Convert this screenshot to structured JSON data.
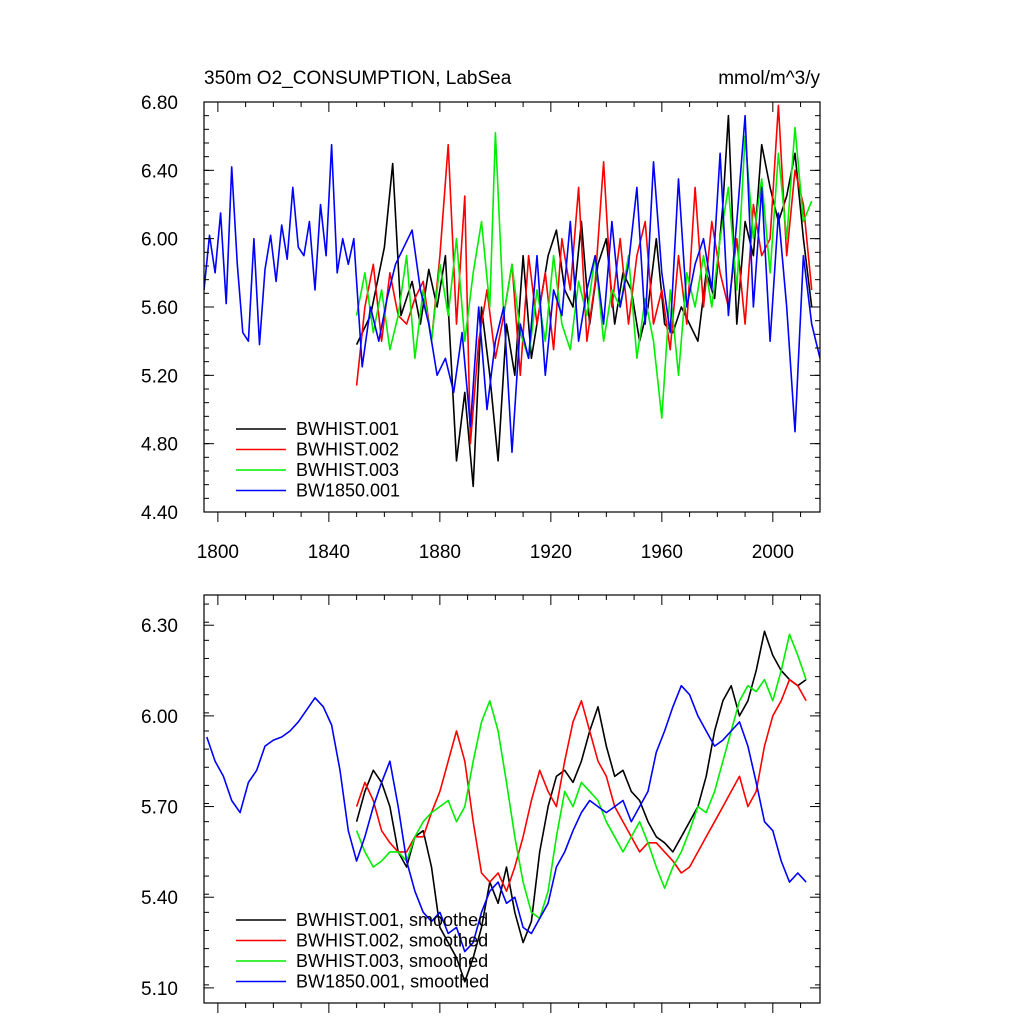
{
  "figure": {
    "title_left": "350m O2_CONSUMPTION, LabSea",
    "title_right": "mmol/m^3/y"
  },
  "chart_data": [
    {
      "type": "line",
      "xlim": [
        1795,
        2017
      ],
      "ylim": [
        4.4,
        6.8
      ],
      "xticks": [
        1800,
        1840,
        1880,
        1920,
        1960,
        2000
      ],
      "yticks": [
        4.4,
        4.8,
        5.2,
        5.6,
        6.0,
        6.4,
        6.8
      ],
      "ytick_labels": [
        "4.40",
        "4.80",
        "5.20",
        "5.60",
        "6.00",
        "6.40",
        "6.80"
      ],
      "xtick_labels": [
        "1800",
        "1840",
        "1880",
        "1920",
        "1960",
        "2000"
      ],
      "legend_position": "bottom-left",
      "series": [
        {
          "name": "BWHIST.001",
          "color": "#000000",
          "x": [
            1850,
            1855,
            1860,
            1863,
            1866,
            1870,
            1873,
            1876,
            1879,
            1882,
            1884,
            1886,
            1889,
            1892,
            1895,
            1898,
            1901,
            1904,
            1907,
            1910,
            1913,
            1916,
            1919,
            1922,
            1925,
            1928,
            1931,
            1934,
            1937,
            1940,
            1943,
            1946,
            1949,
            1952,
            1955,
            1958,
            1961,
            1964,
            1967,
            1970,
            1973,
            1976,
            1979,
            1982,
            1984,
            1987,
            1990,
            1993,
            1996,
            1999,
            2002,
            2005,
            2008,
            2011,
            2014
          ],
          "y": [
            5.38,
            5.55,
            5.95,
            6.44,
            5.55,
            5.75,
            5.5,
            5.82,
            5.6,
            5.9,
            5.3,
            4.7,
            5.1,
            4.55,
            5.6,
            5.2,
            4.7,
            5.5,
            5.2,
            5.9,
            5.3,
            5.6,
            5.9,
            6.05,
            5.7,
            5.6,
            6.1,
            5.5,
            5.85,
            6.0,
            5.5,
            5.8,
            5.7,
            5.4,
            5.6,
            6.0,
            5.5,
            5.45,
            5.6,
            5.5,
            5.4,
            5.8,
            5.65,
            6.2,
            6.72,
            5.5,
            6.1,
            5.9,
            6.55,
            6.3,
            6.1,
            6.25,
            6.5,
            6.0,
            5.6
          ]
        },
        {
          "name": "BWHIST.002",
          "color": "#ff0000",
          "x": [
            1850,
            1853,
            1856,
            1859,
            1862,
            1865,
            1868,
            1871,
            1874,
            1877,
            1880,
            1883,
            1886,
            1889,
            1891,
            1894,
            1897,
            1900,
            1903,
            1906,
            1909,
            1912,
            1915,
            1918,
            1921,
            1924,
            1927,
            1930,
            1933,
            1936,
            1939,
            1942,
            1945,
            1948,
            1951,
            1954,
            1957,
            1960,
            1963,
            1966,
            1969,
            1972,
            1975,
            1978,
            1981,
            1984,
            1987,
            1990,
            1993,
            1996,
            1999,
            2002,
            2005,
            2008,
            2011,
            2014
          ],
          "y": [
            5.14,
            5.6,
            5.85,
            5.4,
            5.8,
            5.55,
            5.5,
            5.65,
            5.75,
            5.4,
            5.9,
            6.55,
            5.5,
            6.25,
            4.8,
            5.4,
            5.7,
            5.3,
            5.55,
            5.85,
            5.2,
            5.9,
            5.5,
            5.8,
            5.35,
            6.0,
            5.7,
            6.3,
            5.4,
            5.75,
            6.45,
            5.6,
            6.0,
            5.5,
            5.9,
            6.1,
            5.5,
            5.7,
            5.35,
            5.9,
            5.5,
            6.3,
            5.6,
            6.1,
            5.8,
            5.6,
            6.0,
            5.5,
            6.2,
            5.9,
            6.0,
            6.78,
            5.9,
            6.4,
            6.2,
            5.7
          ]
        },
        {
          "name": "BWHIST.003",
          "color": "#00ee00",
          "x": [
            1850,
            1853,
            1856,
            1859,
            1862,
            1865,
            1868,
            1871,
            1874,
            1877,
            1880,
            1883,
            1886,
            1889,
            1892,
            1895,
            1898,
            1900,
            1903,
            1906,
            1909,
            1912,
            1915,
            1918,
            1921,
            1924,
            1927,
            1930,
            1933,
            1936,
            1939,
            1942,
            1945,
            1948,
            1951,
            1954,
            1957,
            1960,
            1963,
            1966,
            1969,
            1972,
            1975,
            1978,
            1981,
            1984,
            1987,
            1990,
            1993,
            1996,
            1999,
            2002,
            2005,
            2008,
            2011,
            2014
          ],
          "y": [
            5.55,
            5.8,
            5.45,
            5.7,
            5.35,
            5.55,
            5.9,
            5.3,
            5.7,
            5.4,
            5.85,
            5.55,
            6.0,
            5.4,
            5.8,
            6.1,
            5.6,
            6.62,
            5.55,
            5.85,
            5.45,
            5.3,
            5.7,
            5.4,
            5.9,
            5.5,
            5.35,
            5.75,
            5.55,
            5.9,
            5.4,
            5.7,
            5.6,
            5.9,
            5.3,
            5.65,
            5.4,
            4.95,
            5.7,
            5.2,
            5.8,
            5.6,
            5.9,
            5.6,
            6.0,
            6.3,
            5.7,
            6.6,
            6.0,
            6.35,
            5.8,
            6.5,
            6.0,
            6.65,
            6.1,
            6.22
          ]
        },
        {
          "name": "BW1850.001",
          "color": "#0000ff",
          "x": [
            1795,
            1797,
            1799,
            1801,
            1803,
            1805,
            1807,
            1809,
            1811,
            1813,
            1815,
            1817,
            1819,
            1821,
            1823,
            1825,
            1827,
            1829,
            1831,
            1833,
            1835,
            1837,
            1839,
            1841,
            1843,
            1845,
            1847,
            1849,
            1852,
            1855,
            1858,
            1861,
            1864,
            1867,
            1870,
            1873,
            1876,
            1879,
            1882,
            1885,
            1888,
            1891,
            1894,
            1897,
            1900,
            1903,
            1906,
            1909,
            1912,
            1915,
            1918,
            1921,
            1924,
            1927,
            1930,
            1933,
            1936,
            1939,
            1942,
            1945,
            1948,
            1951,
            1954,
            1957,
            1960,
            1963,
            1966,
            1969,
            1972,
            1975,
            1978,
            1981,
            1984,
            1987,
            1990,
            1993,
            1996,
            1999,
            2002,
            2005,
            2008,
            2011,
            2014,
            2017
          ],
          "y": [
            5.7,
            6.02,
            5.8,
            6.15,
            5.62,
            6.42,
            5.85,
            5.45,
            5.4,
            6.0,
            5.38,
            5.82,
            6.02,
            5.75,
            6.08,
            5.88,
            6.3,
            5.95,
            5.9,
            6.1,
            5.7,
            6.2,
            5.9,
            6.55,
            5.8,
            6.0,
            5.85,
            6.0,
            5.25,
            5.6,
            5.4,
            5.65,
            5.85,
            5.95,
            6.05,
            5.7,
            5.5,
            5.2,
            5.3,
            5.1,
            5.45,
            4.9,
            5.6,
            5.0,
            5.4,
            5.6,
            4.75,
            5.5,
            5.3,
            5.9,
            5.2,
            5.7,
            5.55,
            6.1,
            5.4,
            5.7,
            5.9,
            5.5,
            6.1,
            5.6,
            5.85,
            6.3,
            5.5,
            6.45,
            5.8,
            5.45,
            6.35,
            5.6,
            5.85,
            6.0,
            5.7,
            6.5,
            5.55,
            6.1,
            6.72,
            5.6,
            6.3,
            5.4,
            6.15,
            5.6,
            4.87,
            5.9,
            5.5,
            5.3
          ]
        }
      ]
    },
    {
      "type": "line",
      "xlim": [
        1795,
        2017
      ],
      "ylim": [
        5.05,
        6.4
      ],
      "xticks": [
        1800,
        1840,
        1880,
        1920,
        1960,
        2000
      ],
      "yticks": [
        5.1,
        5.4,
        5.7,
        6.0,
        6.3
      ],
      "ytick_labels": [
        "5.10",
        "5.40",
        "5.70",
        "6.00",
        "6.30"
      ],
      "legend_position": "bottom-left",
      "series": [
        {
          "name": "BWHIST.001, smoothed",
          "color": "#000000",
          "x": [
            1850,
            1853,
            1856,
            1859,
            1862,
            1865,
            1868,
            1871,
            1874,
            1877,
            1880,
            1883,
            1886,
            1889,
            1892,
            1895,
            1898,
            1901,
            1904,
            1907,
            1910,
            1913,
            1916,
            1919,
            1922,
            1925,
            1928,
            1931,
            1934,
            1937,
            1940,
            1943,
            1946,
            1949,
            1952,
            1955,
            1958,
            1961,
            1964,
            1967,
            1970,
            1973,
            1976,
            1979,
            1982,
            1985,
            1988,
            1991,
            1994,
            1997,
            2000,
            2003,
            2006,
            2009,
            2012
          ],
          "y": [
            5.65,
            5.75,
            5.82,
            5.78,
            5.7,
            5.55,
            5.5,
            5.6,
            5.62,
            5.5,
            5.3,
            5.25,
            5.2,
            5.12,
            5.2,
            5.3,
            5.45,
            5.38,
            5.5,
            5.35,
            5.25,
            5.32,
            5.55,
            5.7,
            5.8,
            5.82,
            5.78,
            5.85,
            5.95,
            6.03,
            5.9,
            5.8,
            5.82,
            5.75,
            5.72,
            5.65,
            5.6,
            5.58,
            5.55,
            5.6,
            5.65,
            5.7,
            5.8,
            5.95,
            6.05,
            6.1,
            6.0,
            6.05,
            6.15,
            6.28,
            6.2,
            6.15,
            6.12,
            6.1,
            6.12
          ]
        },
        {
          "name": "BWHIST.002, smoothed",
          "color": "#ff0000",
          "x": [
            1850,
            1853,
            1856,
            1859,
            1862,
            1865,
            1868,
            1871,
            1874,
            1877,
            1880,
            1883,
            1886,
            1889,
            1892,
            1895,
            1898,
            1901,
            1904,
            1907,
            1910,
            1913,
            1916,
            1919,
            1922,
            1925,
            1928,
            1931,
            1934,
            1937,
            1940,
            1943,
            1946,
            1949,
            1952,
            1955,
            1958,
            1961,
            1964,
            1967,
            1970,
            1973,
            1976,
            1979,
            1982,
            1985,
            1988,
            1991,
            1994,
            1997,
            2000,
            2003,
            2006,
            2009,
            2012
          ],
          "y": [
            5.7,
            5.78,
            5.72,
            5.62,
            5.58,
            5.55,
            5.55,
            5.6,
            5.6,
            5.68,
            5.75,
            5.85,
            5.95,
            5.85,
            5.65,
            5.48,
            5.45,
            5.48,
            5.42,
            5.5,
            5.6,
            5.72,
            5.82,
            5.75,
            5.7,
            5.85,
            5.98,
            6.05,
            5.95,
            5.85,
            5.8,
            5.7,
            5.65,
            5.6,
            5.55,
            5.58,
            5.58,
            5.55,
            5.52,
            5.48,
            5.5,
            5.55,
            5.6,
            5.65,
            5.7,
            5.75,
            5.8,
            5.7,
            5.75,
            5.9,
            6.0,
            6.05,
            6.12,
            6.1,
            6.05
          ]
        },
        {
          "name": "BWHIST.003, smoothed",
          "color": "#00ee00",
          "x": [
            1850,
            1853,
            1856,
            1859,
            1862,
            1865,
            1868,
            1871,
            1874,
            1877,
            1880,
            1883,
            1886,
            1889,
            1892,
            1895,
            1898,
            1901,
            1904,
            1907,
            1910,
            1913,
            1916,
            1919,
            1922,
            1925,
            1928,
            1931,
            1934,
            1937,
            1940,
            1943,
            1946,
            1949,
            1952,
            1955,
            1958,
            1961,
            1964,
            1967,
            1970,
            1973,
            1976,
            1979,
            1982,
            1985,
            1988,
            1991,
            1994,
            1997,
            2000,
            2003,
            2006,
            2009,
            2012
          ],
          "y": [
            5.62,
            5.55,
            5.5,
            5.52,
            5.55,
            5.55,
            5.52,
            5.6,
            5.65,
            5.68,
            5.7,
            5.72,
            5.65,
            5.7,
            5.85,
            5.98,
            6.05,
            5.95,
            5.78,
            5.6,
            5.45,
            5.35,
            5.33,
            5.42,
            5.6,
            5.75,
            5.7,
            5.78,
            5.75,
            5.72,
            5.65,
            5.6,
            5.55,
            5.6,
            5.65,
            5.58,
            5.5,
            5.43,
            5.5,
            5.55,
            5.62,
            5.7,
            5.68,
            5.75,
            5.85,
            5.95,
            6.05,
            6.1,
            6.08,
            6.12,
            6.05,
            6.15,
            6.27,
            6.2,
            6.12
          ]
        },
        {
          "name": "BW1850.001, smoothed",
          "color": "#0000ff",
          "x": [
            1796,
            1799,
            1802,
            1805,
            1808,
            1811,
            1814,
            1817,
            1820,
            1823,
            1826,
            1829,
            1832,
            1835,
            1838,
            1841,
            1844,
            1847,
            1850,
            1853,
            1856,
            1859,
            1862,
            1865,
            1868,
            1871,
            1874,
            1877,
            1880,
            1883,
            1886,
            1889,
            1892,
            1895,
            1898,
            1901,
            1904,
            1907,
            1910,
            1913,
            1916,
            1919,
            1922,
            1925,
            1928,
            1931,
            1934,
            1937,
            1940,
            1943,
            1946,
            1949,
            1952,
            1955,
            1958,
            1961,
            1964,
            1967,
            1970,
            1973,
            1976,
            1979,
            1982,
            1985,
            1988,
            1991,
            1994,
            1997,
            2000,
            2003,
            2006,
            2009,
            2012
          ],
          "y": [
            5.93,
            5.85,
            5.8,
            5.72,
            5.68,
            5.78,
            5.82,
            5.9,
            5.92,
            5.93,
            5.95,
            5.98,
            6.02,
            6.06,
            6.03,
            5.97,
            5.82,
            5.62,
            5.52,
            5.6,
            5.7,
            5.78,
            5.85,
            5.7,
            5.52,
            5.42,
            5.35,
            5.32,
            5.35,
            5.28,
            5.3,
            5.22,
            5.25,
            5.35,
            5.42,
            5.45,
            5.38,
            5.4,
            5.3,
            5.28,
            5.33,
            5.38,
            5.5,
            5.55,
            5.62,
            5.68,
            5.72,
            5.7,
            5.68,
            5.7,
            5.72,
            5.65,
            5.7,
            5.75,
            5.88,
            5.95,
            6.03,
            6.1,
            6.07,
            6.0,
            5.95,
            5.9,
            5.92,
            5.95,
            5.98,
            5.9,
            5.78,
            5.65,
            5.62,
            5.52,
            5.45,
            5.48,
            5.45
          ]
        }
      ]
    }
  ]
}
